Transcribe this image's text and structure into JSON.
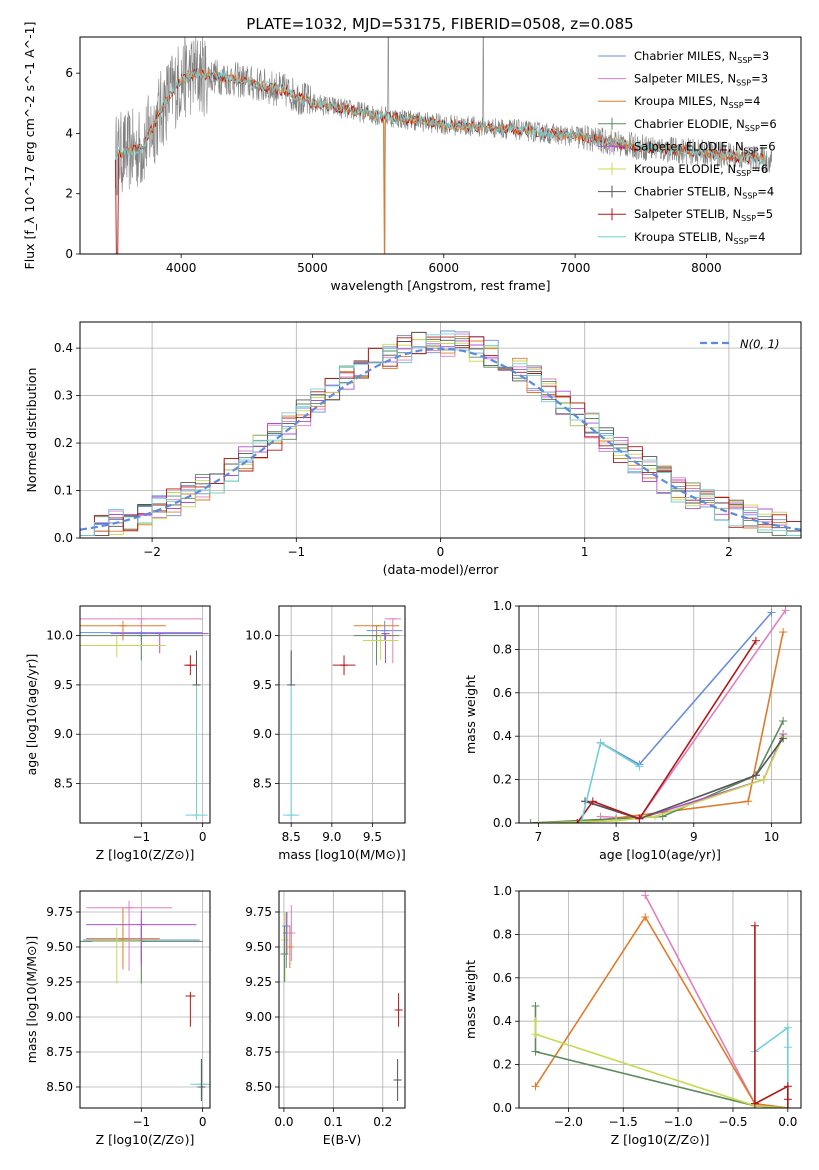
{
  "figure_title": "PLATE=1032, MJD=53175, FIBERID=0508, z=0.085",
  "colors": {
    "data": "#808080",
    "series": [
      "#6a8fd8",
      "#e07fc0",
      "#e07b2c",
      "#5b8a5b",
      "#b050d0",
      "#c8d850",
      "#555555",
      "#b01818",
      "#70d0d8"
    ]
  },
  "legend": [
    "Chabrier MILES, N_SSP=3",
    "Salpeter MILES, N_SSP=3",
    "Kroupa MILES, N_SSP=4",
    "Chabrier ELODIE, N_SSP=6",
    "Salpeter ELODIE, N_SSP=6",
    "Kroupa ELODIE, N_SSP=6",
    "Chabrier STELIB, N_SSP=4",
    "Salpeter STELIB, N_SSP=5",
    "Kroupa STELIB, N_SSP=4"
  ],
  "chart_data": [
    {
      "id": "spectrum",
      "type": "line",
      "xlabel": "wavelength [Angstrom, rest frame]",
      "ylabel": "Flux [f_λ 10^-17 erg cm^-2 s^-1 A^-1]",
      "xlim": [
        3230,
        8720
      ],
      "ylim": [
        0,
        7.2
      ],
      "xticks": [
        4000,
        5000,
        6000,
        7000,
        8000
      ],
      "yticks": [
        0,
        2,
        4,
        6
      ],
      "continuum": [
        [
          3500,
          3.3
        ],
        [
          3700,
          3.5
        ],
        [
          3900,
          5.2
        ],
        [
          4000,
          5.8
        ],
        [
          4100,
          6.0
        ],
        [
          4400,
          5.8
        ],
        [
          4800,
          5.4
        ],
        [
          5000,
          5.0
        ],
        [
          5200,
          4.85
        ],
        [
          5500,
          4.6
        ],
        [
          6000,
          4.3
        ],
        [
          6500,
          4.15
        ],
        [
          7000,
          3.9
        ],
        [
          7500,
          3.55
        ],
        [
          8000,
          3.35
        ],
        [
          8500,
          3.1
        ]
      ],
      "grid": false,
      "legend_position": "upper right"
    },
    {
      "id": "residuals",
      "type": "line",
      "xlabel": "(data-model)/error",
      "ylabel": "Normed distribution",
      "xlim": [
        -2.5,
        2.5
      ],
      "ylim": [
        0,
        0.455
      ],
      "xticks": [
        -2,
        -1,
        0,
        1,
        2
      ],
      "yticks": [
        0.0,
        0.1,
        0.2,
        0.3,
        0.4
      ],
      "gaussian_label": "N(0, 1)",
      "grid": true,
      "legend_position": "upper right"
    },
    {
      "id": "age_vs_Z",
      "type": "scatter",
      "xlabel": "Z [log10(Z/Z⊙)]",
      "ylabel": "age [log10(age/yr)]",
      "xlim": [
        -2.0,
        0.12
      ],
      "ylim": [
        8.1,
        10.3
      ],
      "xticks": [
        -1,
        0
      ],
      "yticks": [
        8.5,
        9.0,
        9.5,
        10.0
      ],
      "points": [
        {
          "x": -0.1,
          "y": 8.18,
          "xerr": 0.18,
          "yerr": [
            0.05,
            1.65
          ],
          "c": 8
        },
        {
          "x": -0.1,
          "y": 9.5,
          "xerr": 0.0,
          "yerr": [
            0.0,
            0.35
          ],
          "c": 6
        },
        {
          "x": -0.2,
          "y": 9.7,
          "xerr": 0.1,
          "yerr": [
            0.1,
            0.1
          ],
          "c": 7
        },
        {
          "x": -1.0,
          "y": 10.03,
          "xerr": 1.0,
          "yerr": [
            0.08,
            0.02
          ],
          "c": 0
        },
        {
          "x": -1.0,
          "y": 10.17,
          "xerr": 1.0,
          "yerr": [
            0.1,
            0.0
          ],
          "c": 1
        },
        {
          "x": -1.3,
          "y": 10.1,
          "xerr": 0.7,
          "yerr": [
            0.15,
            0.05
          ],
          "c": 2
        },
        {
          "x": -1.0,
          "y": 10.0,
          "xerr": 1.0,
          "yerr": [
            0.25,
            0.0
          ],
          "c": 3
        },
        {
          "x": -0.7,
          "y": 10.02,
          "xerr": 0.8,
          "yerr": [
            0.2,
            0.0
          ],
          "c": 4
        },
        {
          "x": -1.4,
          "y": 9.9,
          "xerr": 0.8,
          "yerr": [
            0.12,
            0.1
          ],
          "c": 5
        }
      ],
      "grid": true
    },
    {
      "id": "age_vs_mass",
      "type": "scatter",
      "xlabel": "mass [log10(M/M⊙)]",
      "ylabel": "",
      "xlim": [
        8.35,
        9.9
      ],
      "ylim": [
        8.1,
        10.3
      ],
      "xticks": [
        8.5,
        9.0,
        9.5
      ],
      "yticks": [
        8.5,
        9.0,
        9.5,
        10.0
      ],
      "points": [
        {
          "x": 8.5,
          "y": 8.18,
          "xerr": 0.1,
          "yerr": [
            0.05,
            1.65
          ],
          "c": 8
        },
        {
          "x": 8.5,
          "y": 9.5,
          "xerr": 0.0,
          "yerr": [
            0.0,
            0.35
          ],
          "c": 6
        },
        {
          "x": 9.15,
          "y": 9.7,
          "xerr": 0.14,
          "yerr": [
            0.1,
            0.1
          ],
          "c": 7
        },
        {
          "x": 9.65,
          "y": 10.05,
          "xerr": 0.22,
          "yerr": [
            0.1,
            0.1
          ],
          "c": 0
        },
        {
          "x": 9.75,
          "y": 10.17,
          "xerr": 0.1,
          "yerr": [
            0.45,
            0.0
          ],
          "c": 1
        },
        {
          "x": 9.55,
          "y": 10.1,
          "xerr": 0.28,
          "yerr": [
            0.15,
            0.0
          ],
          "c": 2
        },
        {
          "x": 9.55,
          "y": 10.0,
          "xerr": 0.28,
          "yerr": [
            0.3,
            0.0
          ],
          "c": 3
        },
        {
          "x": 9.66,
          "y": 10.02,
          "xerr": 0.05,
          "yerr": [
            0.3,
            0.0
          ],
          "c": 4
        },
        {
          "x": 9.6,
          "y": 9.95,
          "xerr": 0.22,
          "yerr": [
            0.2,
            0.05
          ],
          "c": 5
        }
      ],
      "grid": true
    },
    {
      "id": "mw_vs_age",
      "type": "line",
      "xlabel": "age [log10(age/yr)]",
      "ylabel": "mass weight",
      "xlim": [
        6.75,
        10.38
      ],
      "ylim": [
        0,
        1.0
      ],
      "xticks": [
        7,
        8,
        9,
        10
      ],
      "yticks": [
        0.0,
        0.2,
        0.4,
        0.6,
        0.8,
        1.0
      ],
      "series": [
        {
          "c": 0,
          "x": [
            7.8,
            8.3,
            10.0
          ],
          "y": [
            0.37,
            0.27,
            0.97
          ]
        },
        {
          "c": 1,
          "x": [
            7.8,
            8.3,
            10.18
          ],
          "y": [
            0.03,
            0.02,
            0.98
          ]
        },
        {
          "c": 2,
          "x": [
            7.5,
            9.7,
            10.15
          ],
          "y": [
            0.0,
            0.1,
            0.88
          ]
        },
        {
          "c": 3,
          "x": [
            6.9,
            8.0,
            8.6,
            9.8,
            10.15
          ],
          "y": [
            0.0,
            0.02,
            0.03,
            0.22,
            0.47
          ]
        },
        {
          "c": 4,
          "x": [
            7.6,
            8.3,
            9.9,
            10.15
          ],
          "y": [
            0.1,
            0.02,
            0.2,
            0.41
          ]
        },
        {
          "c": 5,
          "x": [
            7.0,
            8.0,
            8.5,
            9.9,
            10.15
          ],
          "y": [
            0.0,
            0.01,
            0.03,
            0.2,
            0.4
          ]
        },
        {
          "c": 6,
          "x": [
            7.6,
            8.3,
            9.8,
            10.15
          ],
          "y": [
            0.1,
            0.02,
            0.22,
            0.39
          ]
        },
        {
          "c": 7,
          "x": [
            7.5,
            7.7,
            8.3,
            9.8
          ],
          "y": [
            0.0,
            0.1,
            0.02,
            0.84
          ]
        },
        {
          "c": 8,
          "x": [
            7.55,
            7.8,
            8.3
          ],
          "y": [
            0.0,
            0.37,
            0.26
          ]
        }
      ],
      "grid": true
    },
    {
      "id": "mass_vs_Z",
      "type": "scatter",
      "xlabel": "Z [log10(Z/Z⊙)]",
      "ylabel": "mass [log10(M/M⊙)]",
      "xlim": [
        -2.0,
        0.12
      ],
      "ylim": [
        8.35,
        9.9
      ],
      "xticks": [
        -1,
        0
      ],
      "yticks": [
        8.5,
        8.75,
        9.0,
        9.25,
        9.5,
        9.75
      ],
      "points": [
        {
          "x": -0.02,
          "y": 8.52,
          "xerr": 0.18,
          "yerr": [
            0.12,
            0.18
          ],
          "c": 8
        },
        {
          "x": -0.02,
          "y": 8.5,
          "xerr": 0.0,
          "yerr": [
            0.1,
            0.2
          ],
          "c": 6
        },
        {
          "x": -0.2,
          "y": 9.15,
          "xerr": 0.08,
          "yerr": [
            0.22,
            0.03
          ],
          "c": 7
        },
        {
          "x": -1.0,
          "y": 9.55,
          "xerr": 0.95,
          "yerr": [
            0.15,
            0.15
          ],
          "c": 0
        },
        {
          "x": -1.2,
          "y": 9.78,
          "xerr": 0.7,
          "yerr": [
            0.45,
            0.05
          ],
          "c": 1
        },
        {
          "x": -1.3,
          "y": 9.56,
          "xerr": 0.6,
          "yerr": [
            0.22,
            0.22
          ],
          "c": 2
        },
        {
          "x": -1.0,
          "y": 9.54,
          "xerr": 1.0,
          "yerr": [
            0.3,
            0.1
          ],
          "c": 3
        },
        {
          "x": -1.0,
          "y": 9.66,
          "xerr": 0.9,
          "yerr": [
            0.3,
            0.1
          ],
          "c": 4
        },
        {
          "x": -1.4,
          "y": 9.54,
          "xerr": 0.4,
          "yerr": [
            0.3,
            0.1
          ],
          "c": 5
        }
      ],
      "grid": true
    },
    {
      "id": "mass_vs_ebv",
      "type": "scatter",
      "xlabel": "E(B-V)",
      "ylabel": "",
      "xlim": [
        -0.01,
        0.245
      ],
      "ylim": [
        8.35,
        9.9
      ],
      "xticks": [
        0.0,
        0.1,
        0.2
      ],
      "yticks": [
        8.5,
        8.75,
        9.0,
        9.25,
        9.5,
        9.75
      ],
      "points": [
        {
          "x": 0.23,
          "y": 8.55,
          "xerr": 0.0,
          "yerr": [
            0.15,
            0.15
          ],
          "c": 6
        },
        {
          "x": 0.232,
          "y": 9.05,
          "xerr": 0.0,
          "yerr": [
            0.12,
            0.12
          ],
          "c": 7
        },
        {
          "x": 0.002,
          "y": 9.55,
          "xerr": 0.0,
          "yerr": [
            0.3,
            0.2
          ],
          "c": 5
        },
        {
          "x": 0.005,
          "y": 9.65,
          "xerr": 0.0,
          "yerr": [
            0.3,
            0.1
          ],
          "c": 0
        },
        {
          "x": 0.006,
          "y": 9.6,
          "xerr": 0.0,
          "yerr": [
            0.15,
            0.15
          ],
          "c": 4
        },
        {
          "x": 0.015,
          "y": 9.6,
          "xerr": 0.0,
          "yerr": [
            0.2,
            0.2
          ],
          "c": 1
        },
        {
          "x": 0.012,
          "y": 9.5,
          "xerr": 0.0,
          "yerr": [
            0.15,
            0.15
          ],
          "c": 2
        },
        {
          "x": 0.001,
          "y": 9.45,
          "xerr": 0.0,
          "yerr": [
            0.2,
            0.2
          ],
          "c": 3
        }
      ],
      "grid": true
    },
    {
      "id": "mw_vs_Z",
      "type": "line",
      "xlabel": "Z [log10(Z/Z⊙)]",
      "ylabel": "mass weight",
      "xlim": [
        -2.45,
        0.12
      ],
      "ylim": [
        0,
        1.0
      ],
      "xticks": [
        -2.0,
        -1.5,
        -1.0,
        -0.5,
        0.0
      ],
      "yticks": [
        0.0,
        0.2,
        0.4,
        0.6,
        0.8,
        1.0
      ],
      "series": [
        {
          "c": 8,
          "x": [
            -0.3,
            0.0,
            0.0,
            0.0
          ],
          "y": [
            0.26,
            0.37,
            0.28,
            0.0
          ]
        },
        {
          "c": 1,
          "x": [
            -1.3,
            -0.3,
            0.0
          ],
          "y": [
            0.98,
            0.02,
            0.0
          ]
        },
        {
          "c": 2,
          "x": [
            -2.3,
            -1.3,
            -0.3,
            0.0
          ],
          "y": [
            0.1,
            0.88,
            0.02,
            0.0
          ]
        },
        {
          "c": 3,
          "x": [
            -2.3,
            -2.3,
            -0.3,
            0.0
          ],
          "y": [
            0.47,
            0.26,
            0.01,
            0.0
          ]
        },
        {
          "c": 5,
          "x": [
            -2.3,
            -2.3,
            -0.3,
            0.0
          ],
          "y": [
            0.4,
            0.34,
            0.01,
            0.0
          ]
        },
        {
          "c": 7,
          "x": [
            -0.3,
            -0.3,
            0.0,
            0.0,
            0.0
          ],
          "y": [
            0.84,
            0.02,
            0.1,
            0.04,
            0.0
          ]
        }
      ],
      "grid": true
    }
  ]
}
